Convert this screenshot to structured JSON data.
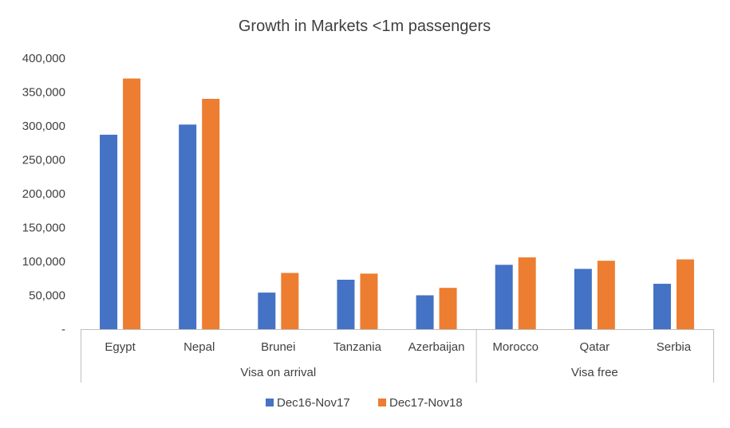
{
  "chart_data": {
    "type": "bar",
    "title": "Growth in Markets <1m passengers",
    "categories": [
      "Egypt",
      "Nepal",
      "Brunei",
      "Tanzania",
      "Azerbaijan",
      "Morocco",
      "Qatar",
      "Serbia"
    ],
    "groups": [
      {
        "label": "Visa on arrival",
        "categories": [
          "Egypt",
          "Nepal",
          "Brunei",
          "Tanzania",
          "Azerbaijan"
        ]
      },
      {
        "label": "Visa free",
        "categories": [
          "Morocco",
          "Qatar",
          "Serbia"
        ]
      }
    ],
    "series": [
      {
        "name": "Dec16-Nov17",
        "color": "#4472C4",
        "values": [
          287000,
          302000,
          54000,
          73000,
          50000,
          95000,
          89000,
          67000
        ]
      },
      {
        "name": "Dec17-Nov18",
        "color": "#ED7D31",
        "values": [
          370000,
          340000,
          83000,
          82000,
          61000,
          106000,
          101000,
          103000
        ]
      }
    ],
    "y_ticks": [
      "-",
      "50,000",
      "100,000",
      "150,000",
      "200,000",
      "250,000",
      "300,000",
      "350,000",
      "400,000"
    ],
    "ylim": [
      0,
      400000
    ],
    "xlabel": "",
    "ylabel": "",
    "legend_position": "bottom",
    "grid": false
  }
}
